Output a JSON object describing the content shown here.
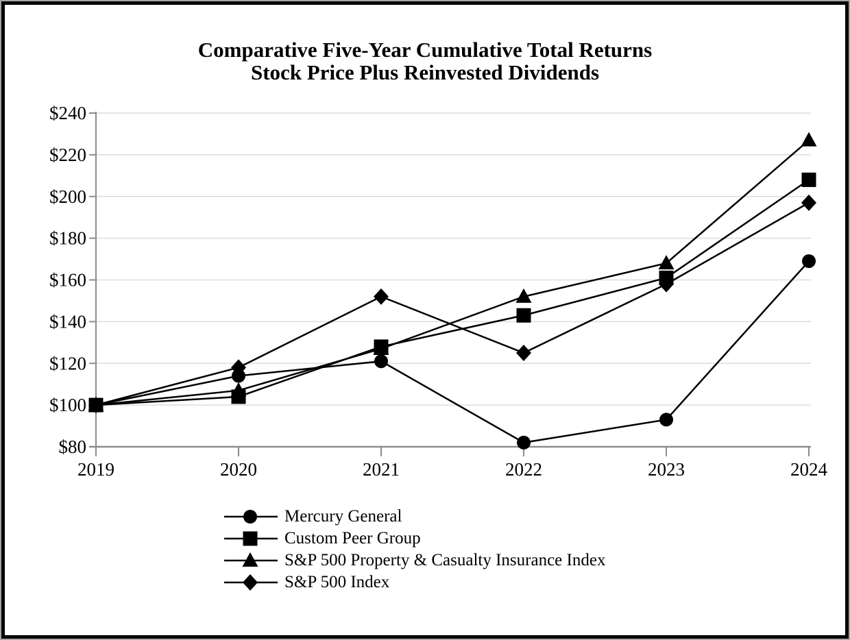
{
  "title": {
    "line1": "Comparative Five-Year Cumulative Total Returns",
    "line2": "Stock Price Plus Reinvested Dividends"
  },
  "chart_data": {
    "type": "line",
    "x": [
      "2019",
      "2020",
      "2021",
      "2022",
      "2023",
      "2024"
    ],
    "series": [
      {
        "name": "Mercury General",
        "marker": "circle",
        "values": [
          100,
          114,
          121,
          82,
          93,
          169
        ]
      },
      {
        "name": "Custom Peer Group",
        "marker": "square",
        "values": [
          100,
          104,
          128,
          143,
          161,
          208
        ]
      },
      {
        "name": "S&P 500 Property & Casualty Insurance Index",
        "marker": "triangle",
        "values": [
          100,
          107,
          127,
          152,
          168,
          227
        ]
      },
      {
        "name": "S&P 500 Index",
        "marker": "diamond",
        "values": [
          100,
          118,
          152,
          125,
          158,
          197
        ]
      }
    ],
    "ylim": [
      80,
      240
    ],
    "ytick_step": 20,
    "ytick_labels": [
      "$80",
      "$100",
      "$120",
      "$140",
      "$160",
      "$180",
      "$200",
      "$220",
      "$240"
    ],
    "xlabel": "",
    "ylabel": "",
    "grid": true,
    "legend_position": "bottom-left",
    "series_color": "#000000",
    "axis_color": "#8c8c8c",
    "grid_color": "#dcdcdc"
  }
}
